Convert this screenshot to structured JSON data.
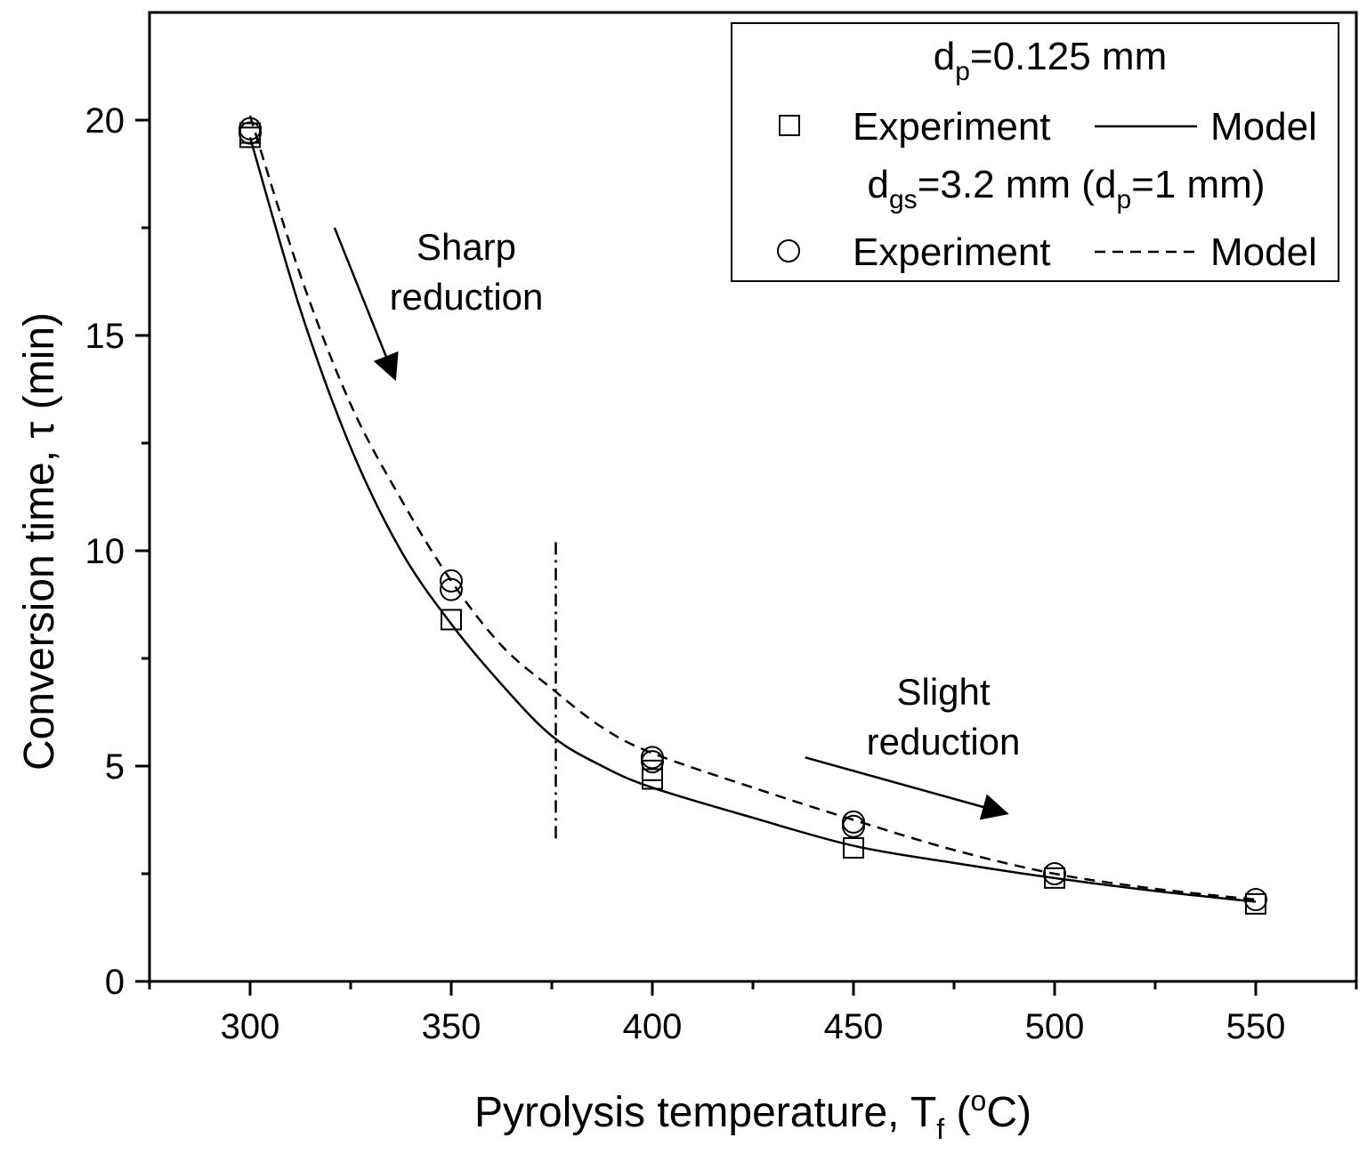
{
  "chart_data": {
    "type": "scatter",
    "title": "",
    "xlabel": {
      "main": "Pyrolysis temperature, T",
      "sub": "f",
      "unit_open": " (",
      "sup": "o",
      "unit_close": "C)"
    },
    "ylabel": "Conversion time, τ (min)",
    "xlim": [
      275,
      575
    ],
    "ylim": [
      0,
      22.5
    ],
    "x_ticks": [
      300,
      350,
      400,
      450,
      500,
      550
    ],
    "x_minor_ticks": [
      275,
      325,
      375,
      425,
      475,
      525,
      575
    ],
    "y_ticks": [
      0,
      5,
      10,
      15,
      20
    ],
    "grid": false,
    "legend": {
      "position": "top-right",
      "group1_header": {
        "main": "d",
        "sub": "p",
        "rest": "=0.125 mm"
      },
      "group2_header": {
        "p1": "d",
        "sub1": "gs",
        "p2": "=3.2 mm (d",
        "sub2": "p",
        "p3": "=1 mm)"
      },
      "experiment_label": "Experiment",
      "model_label": "Model"
    },
    "series": [
      {
        "kind": "experiment",
        "marker": "square",
        "x": [
          300,
          300,
          350,
          400,
          400,
          450,
          500,
          550
        ],
        "y": [
          19.6,
          19.7,
          8.4,
          4.7,
          4.9,
          3.1,
          2.4,
          1.8
        ]
      },
      {
        "kind": "model",
        "line": "solid",
        "x": [
          300,
          312.5,
          325,
          337.5,
          350,
          362.5,
          375,
          387.5,
          400,
          425,
          450,
          475,
          500,
          525,
          550
        ],
        "y": [
          19.6,
          15.6,
          12.4,
          10.0,
          8.3,
          6.9,
          5.7,
          5.0,
          4.5,
          3.8,
          3.15,
          2.75,
          2.4,
          2.1,
          1.85
        ]
      },
      {
        "kind": "experiment",
        "marker": "circle",
        "x": [
          300,
          300,
          350,
          350,
          400,
          400,
          450,
          450,
          500,
          550
        ],
        "y": [
          19.8,
          19.7,
          9.3,
          9.1,
          5.2,
          5.1,
          3.6,
          3.7,
          2.5,
          1.9
        ]
      },
      {
        "kind": "model",
        "line": "dashed",
        "x": [
          300,
          312.5,
          325,
          337.5,
          350,
          362.5,
          375,
          387.5,
          400,
          425,
          450,
          475,
          500,
          525,
          550
        ],
        "y": [
          20.1,
          16.4,
          13.4,
          11.2,
          9.3,
          7.8,
          6.8,
          5.9,
          5.3,
          4.5,
          3.75,
          3.05,
          2.5,
          2.15,
          1.9
        ]
      }
    ],
    "annotations": [
      {
        "lines": [
          "Sharp",
          "reduction"
        ],
        "arrow_from": [
          321,
          17.5
        ],
        "arrow_to": [
          336,
          14.0
        ]
      },
      {
        "lines": [
          "Slight",
          "reduction"
        ],
        "arrow_from": [
          438,
          5.2
        ],
        "arrow_to": [
          488,
          3.9
        ]
      }
    ],
    "vertical_line": {
      "x": 376,
      "y_range": [
        3.2,
        10.2
      ],
      "style": "dash-dot"
    }
  }
}
